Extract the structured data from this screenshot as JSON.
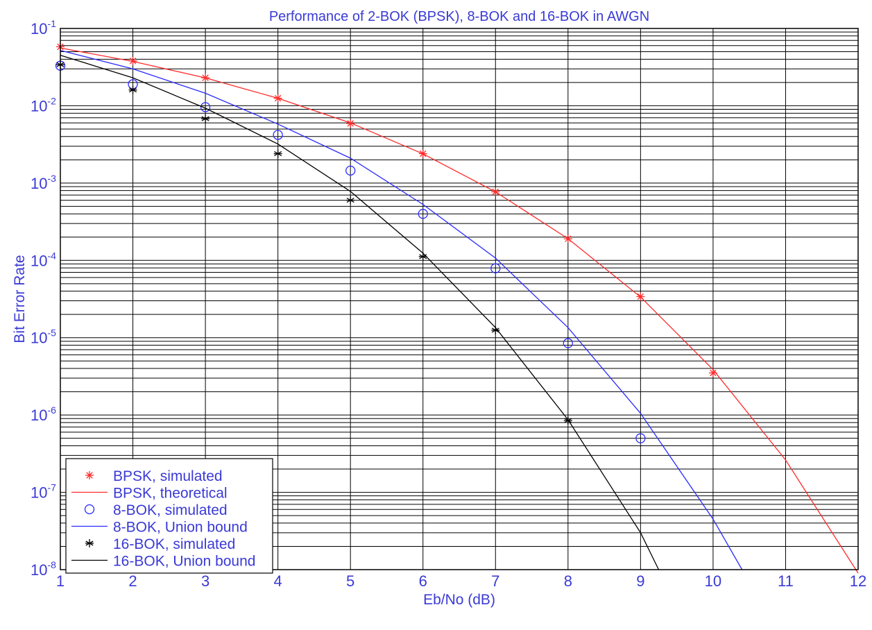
{
  "chart_data": {
    "type": "line",
    "title": "Performance of 2-BOK (BPSK), 8-BOK and 16-BOK in AWGN",
    "xlabel": "Eb/No (dB)",
    "ylabel": "Bit Error Rate",
    "xlim": [
      1,
      12
    ],
    "ylim": [
      1e-08,
      0.1
    ],
    "yscale": "log",
    "grid": true,
    "legend_position": "bottom-left",
    "x_ticks": [
      "1",
      "2",
      "3",
      "4",
      "5",
      "6",
      "7",
      "8",
      "9",
      "10",
      "11",
      "12"
    ],
    "y_ticks": [
      {
        "base": "10",
        "exp": "-1",
        "value": 0.1
      },
      {
        "base": "10",
        "exp": "-2",
        "value": 0.01
      },
      {
        "base": "10",
        "exp": "-3",
        "value": 0.001
      },
      {
        "base": "10",
        "exp": "-4",
        "value": 0.0001
      },
      {
        "base": "10",
        "exp": "-5",
        "value": 1e-05
      },
      {
        "base": "10",
        "exp": "-6",
        "value": 1e-06
      },
      {
        "base": "10",
        "exp": "-7",
        "value": 1e-07
      },
      {
        "base": "10",
        "exp": "-8",
        "value": 1e-08
      }
    ],
    "series": [
      {
        "name": "BPSK, simulated",
        "style": "marker",
        "marker": "star",
        "color": "#ff2a2a",
        "x": [
          1,
          2,
          3,
          4,
          5,
          6,
          7,
          8,
          9,
          10
        ],
        "y": [
          0.058,
          0.038,
          0.023,
          0.0125,
          0.0059,
          0.0024,
          0.00077,
          0.00019,
          3.4e-05,
          3.5e-06
        ]
      },
      {
        "name": "BPSK, theoretical",
        "style": "line",
        "color": "#ff2a2a",
        "x": [
          1,
          2,
          3,
          4,
          5,
          6,
          7,
          8,
          9,
          10,
          11,
          12
        ],
        "y": [
          0.056,
          0.0375,
          0.0229,
          0.0125,
          0.006,
          0.00239,
          0.00077,
          0.000191,
          3.36e-05,
          3.87e-06,
          2.62e-07,
          9e-09
        ]
      },
      {
        "name": "8-BOK, simulated",
        "style": "marker",
        "marker": "circle",
        "color": "#2a2aff",
        "x": [
          1,
          2,
          3,
          4,
          5,
          6,
          7,
          8,
          9
        ],
        "y": [
          0.033,
          0.019,
          0.0096,
          0.0042,
          0.00145,
          0.0004,
          7.9e-05,
          8.5e-06,
          5e-07
        ]
      },
      {
        "name": "8-BOK, Union bound",
        "style": "line",
        "color": "#2a2aff",
        "x": [
          1,
          2,
          3,
          4,
          5,
          6,
          7,
          8,
          9,
          10,
          10.4
        ],
        "y": [
          0.052,
          0.03,
          0.0145,
          0.0058,
          0.0021,
          0.00053,
          0.000107,
          1.35e-05,
          1.05e-06,
          4.5e-08,
          1e-08
        ]
      },
      {
        "name": "16-BOK, simulated",
        "style": "marker",
        "marker": "asterisk",
        "color": "#000000",
        "x": [
          1,
          2,
          3,
          4,
          5,
          6,
          7,
          8
        ],
        "y": [
          0.034,
          0.016,
          0.0068,
          0.0024,
          0.0006,
          0.000112,
          1.25e-05,
          8.5e-07
        ]
      },
      {
        "name": "16-BOK, Union bound",
        "style": "line",
        "color": "#000000",
        "x": [
          1,
          2,
          3,
          4,
          5,
          6,
          7,
          8,
          9,
          9.25
        ],
        "y": [
          0.045,
          0.023,
          0.0093,
          0.0032,
          0.00078,
          0.000124,
          1.35e-05,
          8.7e-07,
          3e-08,
          1e-08
        ]
      }
    ]
  }
}
